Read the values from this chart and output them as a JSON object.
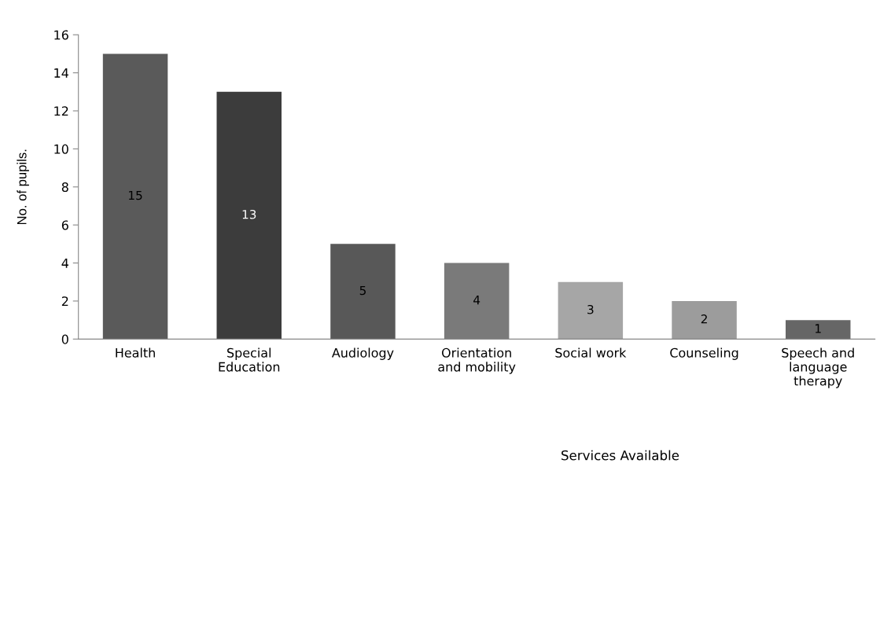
{
  "chart_data": {
    "type": "bar",
    "xlabel": "Services Available",
    "ylabel": "No. of pupils.",
    "categories": [
      "Health",
      "Special\nEducation",
      "Audiology",
      "Orientation\nand mobility",
      "Social work",
      "Counseling",
      "Speech and\nlanguage\ntherapy"
    ],
    "values": [
      15,
      13,
      5,
      4,
      3,
      2,
      1
    ],
    "colors": [
      "#5a5a5a",
      "#3c3c3c",
      "#585858",
      "#7a7a7a",
      "#a6a6a6",
      "#9c9c9c",
      "#666666"
    ],
    "ylim": [
      0,
      16
    ],
    "yticks": [
      0,
      2,
      4,
      6,
      8,
      10,
      12,
      14,
      16
    ],
    "grid": false,
    "data_labels": true
  }
}
